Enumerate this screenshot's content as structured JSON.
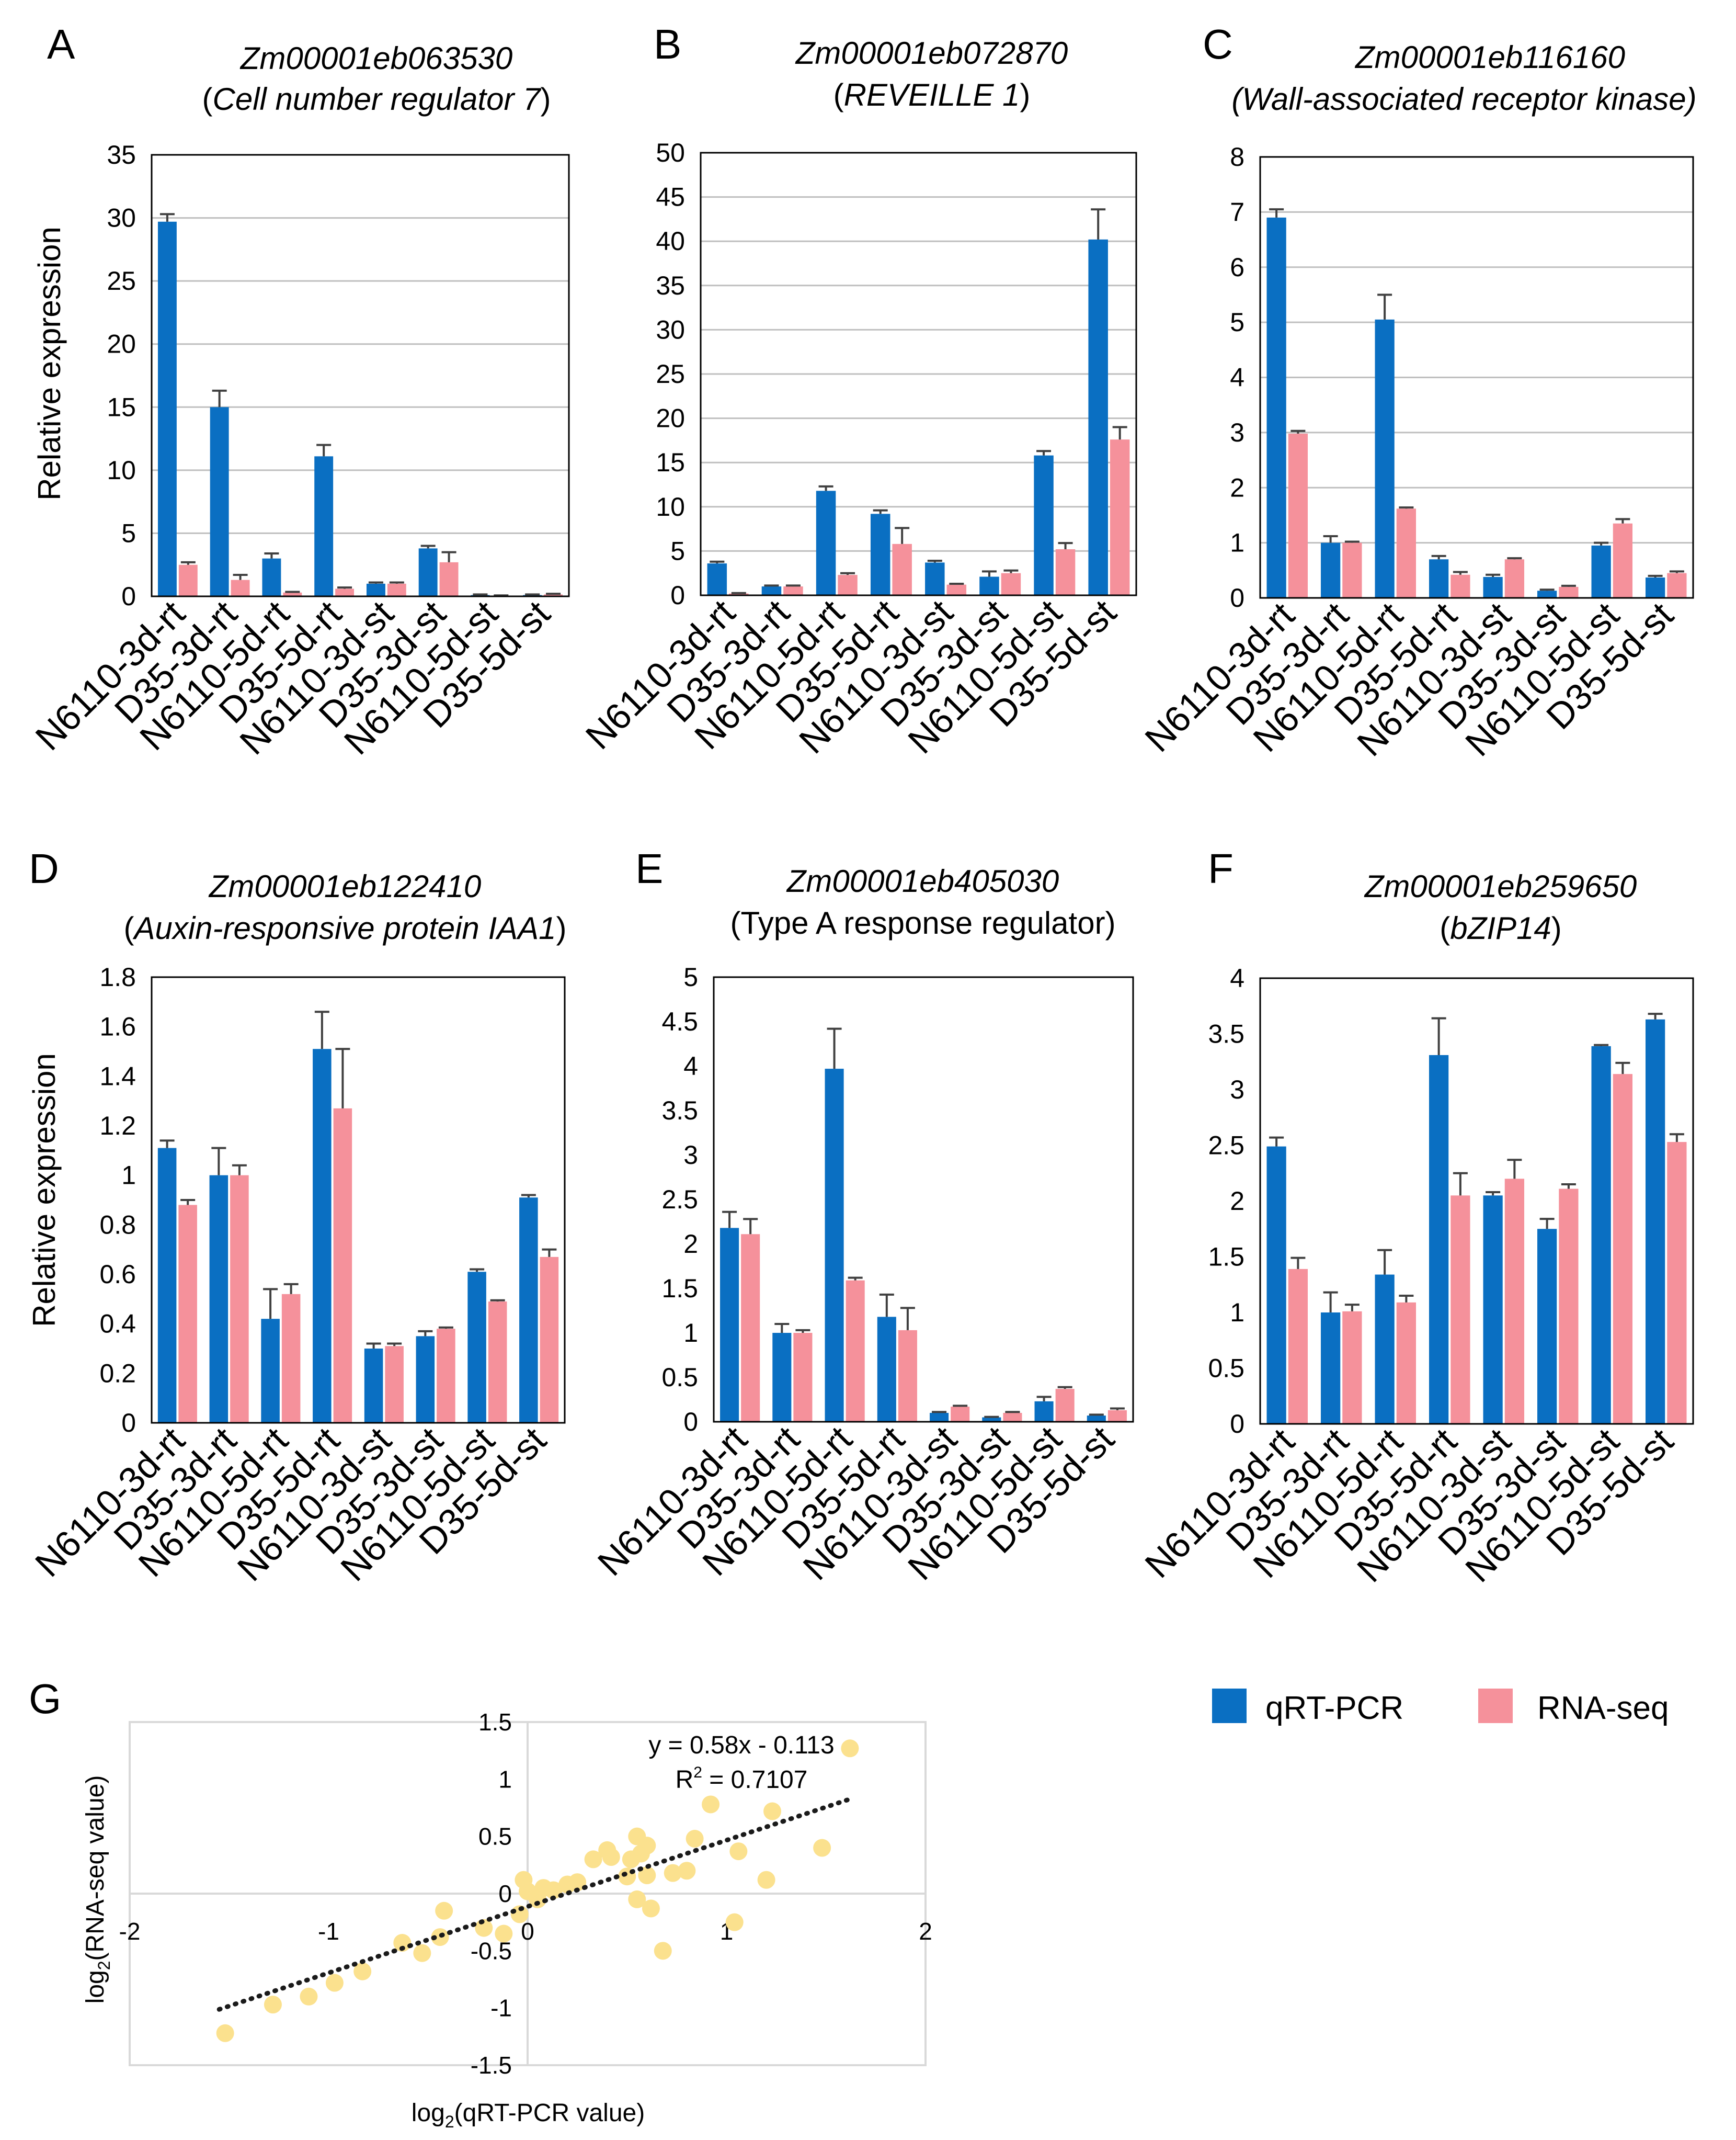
{
  "colors": {
    "qrt": "#0A6FC2",
    "rna": "#F5919B",
    "grid": "#BFBFBF",
    "error": "#404040",
    "scatter": "#FBE18E",
    "trend": "#1a1a1a"
  },
  "legend": {
    "qrt_label": "qRT-PCR",
    "rna_label": "RNA-seq"
  },
  "shared_ylabel": "Relative expression",
  "chart_data": [
    {
      "type": "bar",
      "panel": "A",
      "gene": "Zm00001eb063530",
      "annotation": "Cell number regulator 7",
      "title_prefix": "(",
      "title_suffix": ")",
      "categories": [
        "N6110-3d-rt",
        "D35-3d-rt",
        "N6110-5d-rt",
        "D35-5d-rt",
        "N6110-3d-st",
        "D35-3d-st",
        "N6110-5d-st",
        "D35-5d-st"
      ],
      "ylim": [
        0,
        35
      ],
      "ystep": 5,
      "ytick_labels": [
        "0",
        "5",
        "10",
        "15",
        "20",
        "25",
        "30",
        "35"
      ],
      "ylabel": "Relative expression",
      "grid": true,
      "series": [
        {
          "name": "qRT-PCR",
          "values": [
            29.7,
            15.0,
            3.0,
            11.1,
            1.0,
            3.8,
            0.1,
            0.1
          ],
          "errors": [
            0.6,
            1.3,
            0.4,
            0.9,
            0.1,
            0.2,
            0.05,
            0.05
          ]
        },
        {
          "name": "RNA-seq",
          "values": [
            2.5,
            1.3,
            0.3,
            0.6,
            1.0,
            2.7,
            0.05,
            0.15
          ],
          "errors": [
            0.2,
            0.4,
            0.05,
            0.1,
            0.1,
            0.8,
            0.02,
            0.05
          ]
        }
      ]
    },
    {
      "type": "bar",
      "panel": "B",
      "gene": "Zm00001eb072870",
      "annotation": "REVEILLE 1",
      "title_prefix": "(",
      "title_suffix": ")",
      "categories": [
        "N6110-3d-rt",
        "D35-3d-rt",
        "N6110-5d-rt",
        "D35-5d-rt",
        "N6110-3d-st",
        "D35-3d-st",
        "N6110-5d-st",
        "D35-5d-st"
      ],
      "ylim": [
        0,
        50
      ],
      "ystep": 5,
      "ytick_labels": [
        "0",
        "5",
        "10",
        "15",
        "20",
        "25",
        "30",
        "35",
        "40",
        "45",
        "50"
      ],
      "ylabel": "",
      "grid": true,
      "series": [
        {
          "name": "qRT-PCR",
          "values": [
            3.6,
            1.0,
            11.8,
            9.2,
            3.7,
            2.1,
            15.8,
            40.2
          ],
          "errors": [
            0.2,
            0.1,
            0.5,
            0.4,
            0.2,
            0.6,
            0.5,
            3.4
          ]
        },
        {
          "name": "RNA-seq",
          "values": [
            0.2,
            1.0,
            2.3,
            5.8,
            1.2,
            2.5,
            5.2,
            17.6
          ],
          "errors": [
            0.05,
            0.1,
            0.2,
            1.8,
            0.1,
            0.3,
            0.7,
            1.4
          ]
        }
      ]
    },
    {
      "type": "bar",
      "panel": "C",
      "gene": "Zm00001eb116160",
      "annotation": "Wall-associated receptor kinase",
      "title_prefix": "(",
      "title_suffix": ")",
      "categories": [
        "N6110-3d-rt",
        "D35-3d-rt",
        "N6110-5d-rt",
        "D35-5d-rt",
        "N6110-3d-st",
        "D35-3d-st",
        "N6110-5d-st",
        "D35-5d-st"
      ],
      "ylim": [
        0,
        8
      ],
      "ystep": 1,
      "ytick_labels": [
        "0",
        "1",
        "2",
        "3",
        "4",
        "5",
        "6",
        "7",
        "8"
      ],
      "ylabel": "",
      "grid": true,
      "series": [
        {
          "name": "qRT-PCR",
          "values": [
            6.9,
            1.0,
            5.05,
            0.7,
            0.38,
            0.13,
            0.95,
            0.37
          ],
          "errors": [
            0.15,
            0.12,
            0.45,
            0.06,
            0.04,
            0.02,
            0.05,
            0.03
          ]
        },
        {
          "name": "RNA-seq",
          "values": [
            2.98,
            1.0,
            1.62,
            0.42,
            0.7,
            0.2,
            1.35,
            0.45
          ],
          "errors": [
            0.05,
            0.02,
            0.02,
            0.05,
            0.02,
            0.02,
            0.08,
            0.03
          ]
        }
      ]
    },
    {
      "type": "bar",
      "panel": "D",
      "gene": "Zm00001eb122410",
      "annotation": "Auxin-responsive protein IAA1",
      "title_prefix": "(",
      "title_suffix": ")",
      "categories": [
        "N6110-3d-rt",
        "D35-3d-rt",
        "N6110-5d-rt",
        "D35-5d-rt",
        "N6110-3d-st",
        "D35-3d-st",
        "N6110-5d-st",
        "D35-5d-st"
      ],
      "ylim": [
        0,
        1.8
      ],
      "ystep": 0.2,
      "ytick_labels": [
        "0",
        "0.2",
        "0.4",
        "0.6",
        "0.8",
        "1",
        "1.2",
        "1.4",
        "1.6",
        "1.8"
      ],
      "ylabel": "Relative expression",
      "grid": false,
      "series": [
        {
          "name": "qRT-PCR",
          "values": [
            1.11,
            1.0,
            0.42,
            1.51,
            0.3,
            0.35,
            0.61,
            0.91
          ],
          "errors": [
            0.03,
            0.11,
            0.12,
            0.15,
            0.02,
            0.02,
            0.01,
            0.01
          ]
        },
        {
          "name": "RNA-seq",
          "values": [
            0.88,
            1.0,
            0.52,
            1.27,
            0.31,
            0.38,
            0.49,
            0.67
          ],
          "errors": [
            0.02,
            0.04,
            0.04,
            0.24,
            0.01,
            0.005,
            0.005,
            0.03
          ]
        }
      ]
    },
    {
      "type": "bar",
      "panel": "E",
      "gene": "Zm00001eb405030",
      "annotation": "Type A response regulator",
      "title_prefix": "(",
      "title_suffix": ")",
      "categories": [
        "N6110-3d-rt",
        "D35-3d-rt",
        "N6110-5d-rt",
        "D35-5d-rt",
        "N6110-3d-st",
        "D35-3d-st",
        "N6110-5d-st",
        "D35-5d-st"
      ],
      "ylim": [
        0,
        5
      ],
      "ystep": 0.5,
      "ytick_labels": [
        "0",
        "0.5",
        "1",
        "1.5",
        "2",
        "2.5",
        "3",
        "3.5",
        "4",
        "4.5",
        "5"
      ],
      "ylabel": "",
      "grid": false,
      "series": [
        {
          "name": "qRT-PCR",
          "values": [
            2.18,
            1.0,
            3.97,
            1.18,
            0.1,
            0.05,
            0.23,
            0.07
          ],
          "errors": [
            0.18,
            0.1,
            0.45,
            0.25,
            0.01,
            0.005,
            0.05,
            0.01
          ]
        },
        {
          "name": "RNA-seq",
          "values": [
            2.11,
            1.0,
            1.59,
            1.03,
            0.17,
            0.1,
            0.37,
            0.13
          ],
          "errors": [
            0.17,
            0.03,
            0.03,
            0.25,
            0.01,
            0.01,
            0.02,
            0.02
          ]
        }
      ]
    },
    {
      "type": "bar",
      "panel": "F",
      "gene": "Zm00001eb259650",
      "annotation": "bZIP14",
      "title_prefix": "(",
      "title_suffix": ")",
      "categories": [
        "N6110-3d-rt",
        "D35-3d-rt",
        "N6110-5d-rt",
        "D35-5d-rt",
        "N6110-3d-st",
        "D35-3d-st",
        "N6110-5d-st",
        "D35-5d-st"
      ],
      "ylim": [
        0,
        4
      ],
      "ystep": 0.5,
      "ytick_labels": [
        "0",
        "0.5",
        "1",
        "1.5",
        "2",
        "2.5",
        "3",
        "3.5",
        "4"
      ],
      "ylabel": "",
      "grid": false,
      "series": [
        {
          "name": "qRT-PCR",
          "values": [
            2.49,
            1.0,
            1.34,
            3.31,
            2.05,
            1.75,
            3.39,
            3.63
          ],
          "errors": [
            0.08,
            0.18,
            0.22,
            0.33,
            0.03,
            0.09,
            0.01,
            0.05
          ]
        },
        {
          "name": "RNA-seq",
          "values": [
            1.39,
            1.01,
            1.09,
            2.05,
            2.2,
            2.11,
            3.14,
            2.53
          ],
          "errors": [
            0.1,
            0.06,
            0.06,
            0.2,
            0.17,
            0.04,
            0.1,
            0.07
          ]
        }
      ]
    },
    {
      "type": "scatter",
      "panel": "G",
      "xlabel_main": "log",
      "xlabel_sub": "2",
      "xlabel_rest": "(qRT-PCR value)",
      "ylabel_main": "log",
      "ylabel_sub": "2",
      "ylabel_rest": "(RNA-seq value)",
      "xlim": [
        -2,
        2
      ],
      "ylim": [
        -1.5,
        1.5
      ],
      "xtick_values": [
        -2,
        -1,
        0,
        1,
        2
      ],
      "xtick_labels": [
        "-2",
        "-1",
        "0",
        "1",
        "2"
      ],
      "ytick_values": [
        -1.5,
        -1,
        -0.5,
        0,
        0.5,
        1,
        1.5
      ],
      "ytick_labels": [
        "-1.5",
        "-1",
        "-0.5",
        "0",
        "0.5",
        "1",
        "1.5"
      ],
      "equation": "y = 0.58x - 0.113",
      "r2_main": "R",
      "r2_sup": "2",
      "r2_rest": " = 0.7107",
      "trendline": {
        "slope": 0.58,
        "intercept": -0.113,
        "x_range": [
          -1.55,
          1.62
        ]
      },
      "points": [
        [
          -1.52,
          -1.22
        ],
        [
          -1.28,
          -0.97
        ],
        [
          -1.1,
          -0.9
        ],
        [
          -0.97,
          -0.78
        ],
        [
          -0.83,
          -0.68
        ],
        [
          -0.63,
          -0.43
        ],
        [
          -0.53,
          -0.52
        ],
        [
          -0.44,
          -0.38
        ],
        [
          -0.42,
          -0.15
        ],
        [
          -0.22,
          -0.3
        ],
        [
          -0.12,
          -0.35
        ],
        [
          -0.04,
          -0.18
        ],
        [
          -0.02,
          0.12
        ],
        [
          0.0,
          0.02
        ],
        [
          0.05,
          -0.05
        ],
        [
          0.08,
          0.05
        ],
        [
          0.13,
          0.03
        ],
        [
          0.2,
          0.08
        ],
        [
          0.25,
          0.1
        ],
        [
          0.33,
          0.3
        ],
        [
          0.4,
          0.38
        ],
        [
          0.42,
          0.32
        ],
        [
          0.5,
          0.15
        ],
        [
          0.52,
          0.3
        ],
        [
          0.55,
          -0.05
        ],
        [
          0.55,
          0.5
        ],
        [
          0.57,
          0.35
        ],
        [
          0.6,
          0.42
        ],
        [
          0.6,
          0.16
        ],
        [
          0.62,
          -0.13
        ],
        [
          0.68,
          -0.5
        ],
        [
          0.73,
          0.18
        ],
        [
          0.8,
          0.2
        ],
        [
          0.84,
          0.48
        ],
        [
          0.92,
          0.78
        ],
        [
          1.04,
          -0.25
        ],
        [
          1.06,
          0.37
        ],
        [
          1.2,
          0.12
        ],
        [
          1.23,
          0.72
        ],
        [
          1.48,
          0.4
        ],
        [
          1.62,
          1.27
        ]
      ]
    }
  ]
}
